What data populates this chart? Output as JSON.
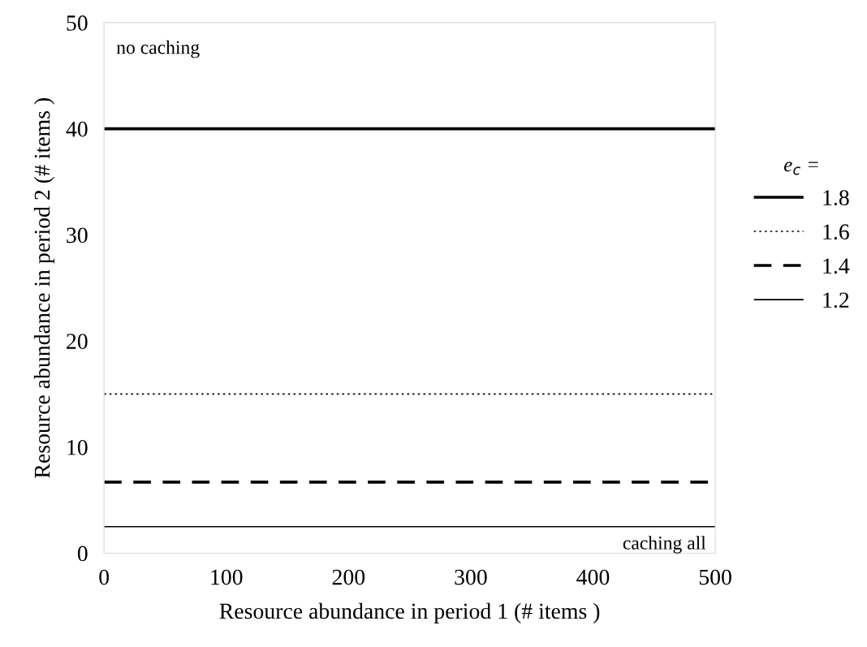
{
  "chart_data": {
    "type": "line",
    "xlabel": "Resource abundance in period 1 (# items )",
    "ylabel": "Resource abundance in period 2 (# items )",
    "legend_title": "e$_{c}$ =",
    "legend": "right",
    "grid": false,
    "marker": "none",
    "x": [
      0,
      500
    ],
    "series": [
      {
        "name": "1.8",
        "color": "#000000",
        "values": [
          40,
          40
        ],
        "line_style": "solid"
      },
      {
        "name": "1.6",
        "color": "#000000",
        "values": [
          15,
          15
        ],
        "line_style": "dotted"
      },
      {
        "name": "1.4",
        "color": "#000000",
        "values": [
          6.7,
          6.7
        ],
        "line_style": "dashed"
      },
      {
        "name": "1.2",
        "color": "#000000",
        "values": [
          2.5,
          2.5
        ],
        "line_style": "solid"
      }
    ],
    "xlim": [
      0,
      500
    ],
    "xticks": [
      0,
      100,
      200,
      300,
      400,
      500
    ],
    "ylim": [
      0,
      50
    ],
    "yticks": [
      0,
      10,
      20,
      30,
      40,
      50
    ],
    "annotations": [
      "no caching",
      "caching all"
    ]
  }
}
